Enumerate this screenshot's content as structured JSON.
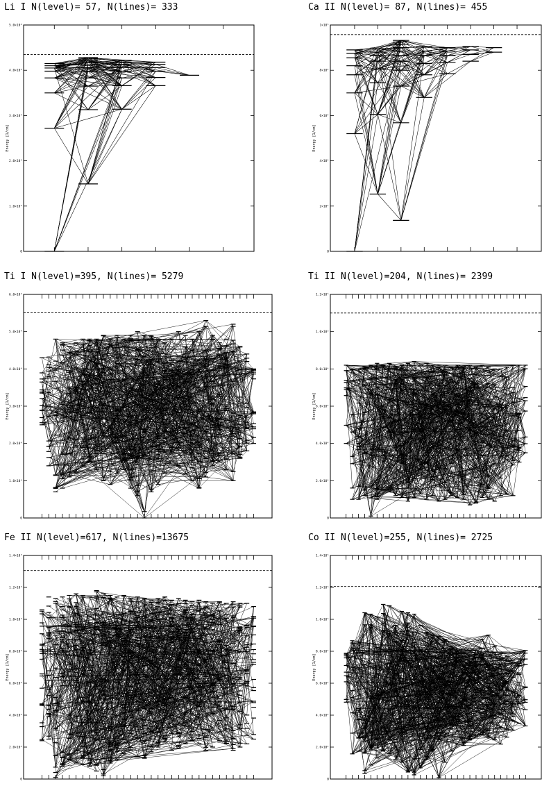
{
  "chart_data": [
    {
      "type": "line",
      "title": "Li I N(level)= 57, N(lines)=  333",
      "ylabel": "Energy [1/cm]",
      "ylim": [
        0,
        50000
      ],
      "yticks": [
        "0",
        "1.0×10⁴",
        "2.0×10⁴",
        "3.0×10⁴",
        "4.0×10⁴",
        "5.0×10⁴"
      ],
      "ionization_limit": 43487,
      "n_level": 57,
      "n_lines": 333,
      "n_columns": 6,
      "levels": [
        {
          "col": 0,
          "energy": 0
        },
        {
          "col": 0,
          "energy": 27200
        },
        {
          "col": 0,
          "energy": 35000
        },
        {
          "col": 0,
          "energy": 38300
        },
        {
          "col": 0,
          "energy": 39800
        },
        {
          "col": 0,
          "energy": 40500
        },
        {
          "col": 0,
          "energy": 41000
        },
        {
          "col": 0,
          "energy": 41500
        },
        {
          "col": 1,
          "energy": 14900
        },
        {
          "col": 1,
          "energy": 31300
        },
        {
          "col": 1,
          "energy": 36500
        },
        {
          "col": 1,
          "energy": 38300
        },
        {
          "col": 1,
          "energy": 39800
        },
        {
          "col": 1,
          "energy": 40600
        },
        {
          "col": 1,
          "energy": 41200
        },
        {
          "col": 1,
          "energy": 41700
        },
        {
          "col": 1,
          "energy": 42100
        },
        {
          "col": 1,
          "energy": 42500
        },
        {
          "col": 1,
          "energy": 42800
        },
        {
          "col": 2,
          "energy": 31400
        },
        {
          "col": 2,
          "energy": 36600
        },
        {
          "col": 2,
          "energy": 38300
        },
        {
          "col": 2,
          "energy": 39800
        },
        {
          "col": 2,
          "energy": 40600
        },
        {
          "col": 2,
          "energy": 41300
        },
        {
          "col": 2,
          "energy": 41800
        },
        {
          "col": 2,
          "energy": 42200
        },
        {
          "col": 3,
          "energy": 36600
        },
        {
          "col": 3,
          "energy": 38400
        },
        {
          "col": 3,
          "energy": 39800
        },
        {
          "col": 3,
          "energy": 40600
        },
        {
          "col": 3,
          "energy": 41300
        },
        {
          "col": 3,
          "energy": 41800
        },
        {
          "col": 4,
          "energy": 38900
        }
      ]
    },
    {
      "type": "line",
      "title": "Ca II N(level)= 87, N(lines)=  455",
      "ylabel": "Energy [1/cm]",
      "ylim": [
        0,
        100000
      ],
      "yticks": [
        "0",
        "2×10⁴",
        "4×10⁴",
        "6×10⁴",
        "8×10⁴",
        "1×10⁵"
      ],
      "ionization_limit": 95752,
      "n_level": 87,
      "n_lines": 455,
      "n_columns": 8,
      "levels": [
        {
          "col": 0,
          "energy": 0
        },
        {
          "col": 0,
          "energy": 52000
        },
        {
          "col": 0,
          "energy": 70000
        },
        {
          "col": 0,
          "energy": 78000
        },
        {
          "col": 0,
          "energy": 82000
        },
        {
          "col": 0,
          "energy": 85500
        },
        {
          "col": 0,
          "energy": 87500
        },
        {
          "col": 0,
          "energy": 89000
        },
        {
          "col": 1,
          "energy": 25300
        },
        {
          "col": 1,
          "energy": 60500
        },
        {
          "col": 1,
          "energy": 74500
        },
        {
          "col": 1,
          "energy": 80500
        },
        {
          "col": 1,
          "energy": 84000
        },
        {
          "col": 1,
          "energy": 86500
        },
        {
          "col": 1,
          "energy": 88000
        },
        {
          "col": 1,
          "energy": 89500
        },
        {
          "col": 2,
          "energy": 13700
        },
        {
          "col": 2,
          "energy": 56800
        },
        {
          "col": 2,
          "energy": 73000
        },
        {
          "col": 2,
          "energy": 80000
        },
        {
          "col": 2,
          "energy": 84000
        },
        {
          "col": 2,
          "energy": 86500
        },
        {
          "col": 2,
          "energy": 88500
        },
        {
          "col": 2,
          "energy": 90000
        },
        {
          "col": 2,
          "energy": 91500
        },
        {
          "col": 2,
          "energy": 92500
        },
        {
          "col": 2,
          "energy": 93200
        },
        {
          "col": 3,
          "energy": 68000
        },
        {
          "col": 3,
          "energy": 78000
        },
        {
          "col": 3,
          "energy": 83000
        },
        {
          "col": 3,
          "energy": 86500
        },
        {
          "col": 3,
          "energy": 88500
        },
        {
          "col": 3,
          "energy": 90500
        },
        {
          "col": 4,
          "energy": 78500
        },
        {
          "col": 4,
          "energy": 83500
        },
        {
          "col": 4,
          "energy": 86500
        },
        {
          "col": 4,
          "energy": 88500
        },
        {
          "col": 4,
          "energy": 90000
        },
        {
          "col": 5,
          "energy": 84000
        },
        {
          "col": 5,
          "energy": 87000
        },
        {
          "col": 5,
          "energy": 89000
        },
        {
          "col": 5,
          "energy": 90500
        },
        {
          "col": 6,
          "energy": 88000
        },
        {
          "col": 6,
          "energy": 90000
        }
      ]
    },
    {
      "type": "line",
      "title": "Ti I N(level)=395, N(lines)= 5279",
      "ylabel": "Energy [1/cm]",
      "ylim": [
        0,
        60000
      ],
      "yticks": [
        "0",
        "1.0×10⁴",
        "2.0×10⁴",
        "3.0×10⁴",
        "4.0×10⁴",
        "5.0×10⁴",
        "6.0×10⁴"
      ],
      "ionization_limit": 55072,
      "n_level": 395,
      "n_lines": 5279,
      "n_columns": 32,
      "env_low": [
        25000,
        14000,
        7000,
        8000,
        11000,
        12000,
        14000,
        15000,
        13000,
        10000,
        9000,
        12000,
        13000,
        8000,
        6000,
        0,
        7000,
        9000,
        12000,
        15000,
        14000,
        12000,
        10000,
        8000,
        11000,
        14000,
        15000,
        13000,
        10000,
        16000,
        18000,
        20000
      ],
      "env_high": [
        43000,
        43000,
        48000,
        47000,
        46000,
        47000,
        48000,
        48000,
        48000,
        49000,
        48000,
        49000,
        48000,
        49000,
        50000,
        49000,
        49000,
        48000,
        47000,
        48000,
        50000,
        49000,
        48000,
        50000,
        53000,
        49000,
        47000,
        48000,
        52000,
        46000,
        44000,
        40000
      ],
      "level_density": 12,
      "line_density": 5279
    },
    {
      "type": "line",
      "title": "Ti II N(level)=204, N(lines)= 2399",
      "ylabel": "Energy [1/cm]",
      "ylim": [
        0,
        120000
      ],
      "yticks": [
        "0",
        "2.0×10⁴",
        "4.0×10⁴",
        "6.0×10⁴",
        "8.0×10⁴",
        "1.0×10⁵",
        "1.2×10⁵"
      ],
      "ionization_limit": 110000,
      "n_level": 204,
      "n_lines": 2399,
      "n_columns": 30,
      "env_low": [
        40000,
        10000,
        10000,
        12000,
        1000,
        10000,
        15000,
        14000,
        12000,
        11000,
        9000,
        11000,
        13000,
        10000,
        12000,
        9000,
        10000,
        12000,
        11000,
        10000,
        7000,
        8000,
        11000,
        10000,
        9000,
        12000,
        13000,
        12000,
        30000,
        35000
      ],
      "env_high": [
        82000,
        80000,
        80000,
        81000,
        82000,
        83000,
        82000,
        83000,
        81000,
        82000,
        83000,
        84000,
        82000,
        83000,
        82000,
        81000,
        82000,
        81000,
        82000,
        81000,
        82000,
        81000,
        82000,
        81000,
        80000,
        80000,
        81000,
        82000,
        82000,
        82000
      ],
      "level_density": 7,
      "line_density": 2399
    },
    {
      "type": "line",
      "title": "Fe II N(level)=617, N(lines)=13675",
      "ylabel": "Energy [1/cm]",
      "ylim": [
        0,
        140000
      ],
      "yticks": [
        "0",
        "2.0×10⁴",
        "4.0×10⁴",
        "6.0×10⁴",
        "8.0×10⁴",
        "1.0×10⁵",
        "1.2×10⁵",
        "1.4×10⁵"
      ],
      "ionization_limit": 130563,
      "n_level": 617,
      "n_lines": 13675,
      "n_columns": 32,
      "env_low": [
        24000,
        25000,
        1000,
        8000,
        12000,
        10000,
        9000,
        8000,
        5000,
        2000,
        10000,
        12000,
        16000,
        18000,
        14000,
        13000,
        17000,
        20000,
        22000,
        18000,
        19000,
        22000,
        24000,
        22000,
        18000,
        20000,
        24000,
        22000,
        18000,
        20000,
        22000,
        25000
      ],
      "env_high": [
        106000,
        114000,
        113000,
        114000,
        115000,
        116000,
        115000,
        114000,
        118000,
        116000,
        115000,
        114000,
        115000,
        113000,
        114000,
        113000,
        112000,
        113000,
        114000,
        112000,
        113000,
        112000,
        111000,
        112000,
        111000,
        110000,
        111000,
        110000,
        111000,
        110000,
        110000,
        108000
      ],
      "level_density": 20,
      "line_density": 13675
    },
    {
      "type": "line",
      "title": "Co II N(level)=255, N(lines)= 2725",
      "ylabel": "Energy [1/cm]",
      "ylim": [
        0,
        160000
      ],
      "yticks": [
        "0",
        "2.0×10⁴",
        "4.0×10⁴",
        "6.0×10⁴",
        "8.0×10⁴",
        "1.0×10⁵",
        "1.2×10⁵",
        "1.4×10⁵"
      ],
      "ionization_limit": 137795,
      "n_level": 255,
      "n_lines": 2725,
      "n_columns": 30,
      "env_low": [
        55000,
        18000,
        20000,
        4000,
        10000,
        15000,
        20000,
        18000,
        14000,
        12000,
        5000,
        3000,
        8000,
        14000,
        20000,
        1000,
        12000,
        20000,
        25000,
        24000,
        28000,
        30000,
        32000,
        30000,
        28000,
        25000,
        30000,
        35000,
        40000,
        38000
      ],
      "env_high": [
        90000,
        99000,
        98000,
        119000,
        118000,
        116000,
        125000,
        124000,
        110000,
        120000,
        119000,
        118000,
        110000,
        105000,
        103000,
        102000,
        100000,
        95000,
        92000,
        90000,
        88000,
        92000,
        100000,
        103000,
        95000,
        90000,
        88000,
        85000,
        90000,
        92000
      ],
      "level_density": 8,
      "line_density": 2725
    }
  ]
}
